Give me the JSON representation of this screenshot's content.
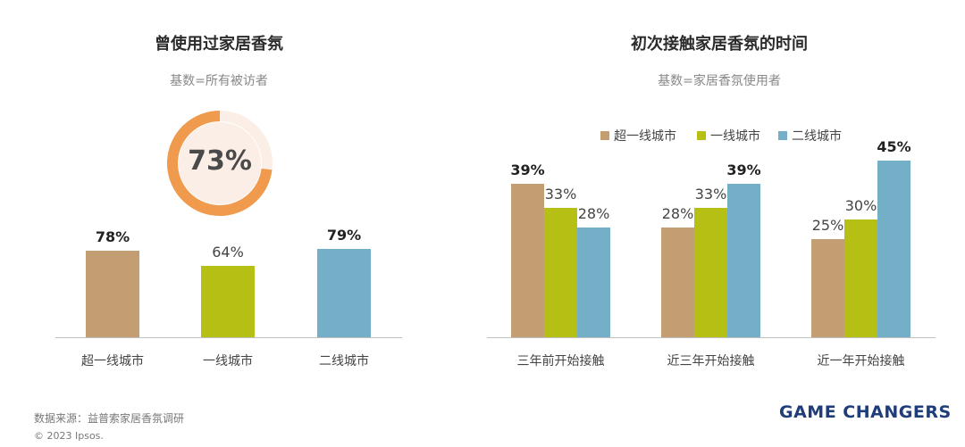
{
  "colors": {
    "tier_super": "#c49e73",
    "tier_first": "#b5bf14",
    "tier_second": "#73b0c8",
    "donut": "#ef9a4c",
    "donut_bg": "#fbeee6"
  },
  "left": {
    "title": "曾使用过家居香氛",
    "subtitle": "基数=所有被访者",
    "donut_label": "73%",
    "donut_value": 73
  },
  "right": {
    "title": "初次接触家居香氛的时间",
    "subtitle": "基数=家居香氛使用者"
  },
  "chart_data": [
    {
      "type": "donut",
      "value": 73,
      "label": "73%"
    },
    {
      "type": "bar",
      "categories": [
        "超一线城市",
        "一线城市",
        "二线城市"
      ],
      "values": [
        78,
        64,
        79
      ],
      "labels": [
        "78%",
        "64%",
        "79%"
      ],
      "bold": [
        true,
        false,
        true
      ],
      "ylim": [
        0,
        100
      ]
    },
    {
      "type": "bar",
      "categories": [
        "三年前开始接触",
        "近三年开始接触",
        "近一年开始接触"
      ],
      "series": [
        {
          "name": "超一线城市",
          "values": [
            39,
            28,
            25
          ],
          "labels": [
            "39%",
            "28%",
            "25%"
          ],
          "bold": [
            true,
            false,
            false
          ]
        },
        {
          "name": "一线城市",
          "values": [
            33,
            33,
            30
          ],
          "labels": [
            "33%",
            "33%",
            "30%"
          ],
          "bold": [
            false,
            false,
            false
          ]
        },
        {
          "name": "二线城市",
          "values": [
            28,
            39,
            45
          ],
          "labels": [
            "28%",
            "39%",
            "45%"
          ],
          "bold": [
            false,
            true,
            true
          ]
        }
      ],
      "legend_position": "top",
      "ylim": [
        0,
        50
      ]
    }
  ],
  "footer": {
    "source": "数据来源：益普索家居香氛调研",
    "copyright": "© 2023 Ipsos.",
    "brand": "GAME CHANGERS"
  }
}
